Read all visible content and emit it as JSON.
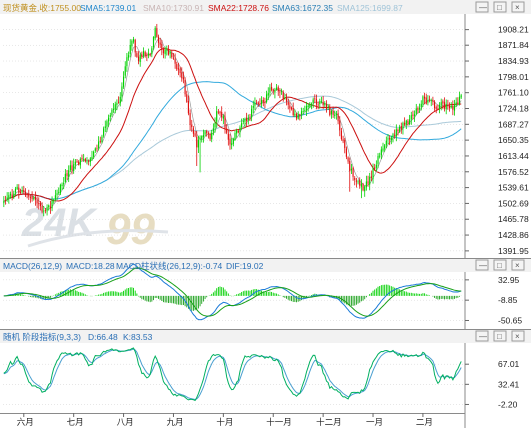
{
  "colors": {
    "bull": "#00d000",
    "bear": "#e01010",
    "sma5": "#999999",
    "sma22": "#cc1010",
    "sma63": "#33aadd",
    "sma125": "#a9c9d9",
    "macd_dif": "#1a7ad8",
    "macd_line": "#18a018",
    "kdj_k": "#00b060",
    "kdj_d": "#4a9fd0",
    "panel_header_bg": "#f2f2f2",
    "grid": "#cfcfcf",
    "watermark": "#d8dde3"
  },
  "price_panel": {
    "title": "现货黄金,收:1755.00",
    "sma5_label": "SMA5:1739.01",
    "sma10_label": "SMA10:1730.91",
    "sma22_label": "SMA22:1728.76",
    "sma63_label": "SMA63:1672.35",
    "sma125_label": "SMA125:1699.87",
    "buttons": [
      "—",
      "□",
      "×"
    ],
    "watermark_a": "24K",
    "watermark_b": "99"
  },
  "macd_panel": {
    "title": "MACD(26,12,9)",
    "macd_label": "MACD:18.28",
    "hist_label": "MACD柱状线(26,12,9):-0.74",
    "dif_label": "DIF:19.02",
    "buttons": [
      "—",
      "□",
      "×"
    ]
  },
  "kdj_panel": {
    "title": "随机 阶段指标(9,3,3)",
    "d_label": "D:66.48",
    "k_label": "K:83.53",
    "buttons": [
      "—",
      "□",
      "×"
    ]
  },
  "chart_data": [
    {
      "type": "candlestick",
      "name": "现货黄金",
      "ylim": [
        1380,
        1940
      ],
      "y_ticks": [
        1908.21,
        1871.84,
        1834.93,
        1798.01,
        1761.1,
        1724.18,
        1687.27,
        1650.35,
        1613.44,
        1576.52,
        1539.61,
        1502.69,
        1465.78,
        1428.86,
        1391.95
      ],
      "x_ticks": [
        "六月",
        "七月",
        "八月",
        "九月",
        "十月",
        "十一月",
        "十二月",
        "一月",
        "二月"
      ],
      "anchors": [
        [
          0,
          1508
        ],
        [
          8,
          1535
        ],
        [
          16,
          1522
        ],
        [
          24,
          1478
        ],
        [
          28,
          1498
        ],
        [
          34,
          1545
        ],
        [
          40,
          1585
        ],
        [
          46,
          1600
        ],
        [
          52,
          1600
        ],
        [
          58,
          1650
        ],
        [
          64,
          1712
        ],
        [
          70,
          1748
        ],
        [
          74,
          1845
        ],
        [
          78,
          1888
        ],
        [
          80,
          1838
        ],
        [
          84,
          1856
        ],
        [
          88,
          1850
        ],
        [
          91,
          1905
        ],
        [
          95,
          1860
        ],
        [
          98,
          1860
        ],
        [
          102,
          1840
        ],
        [
          108,
          1790
        ],
        [
          112,
          1690
        ],
        [
          116,
          1640
        ],
        [
          120,
          1668
        ],
        [
          124,
          1655
        ],
        [
          128,
          1712
        ],
        [
          132,
          1700
        ],
        [
          136,
          1640
        ],
        [
          142,
          1683
        ],
        [
          148,
          1708
        ],
        [
          152,
          1743
        ],
        [
          156,
          1735
        ],
        [
          160,
          1768
        ],
        [
          164,
          1773
        ],
        [
          168,
          1752
        ],
        [
          172,
          1720
        ],
        [
          176,
          1703
        ],
        [
          180,
          1720
        ],
        [
          184,
          1738
        ],
        [
          188,
          1740
        ],
        [
          192,
          1738
        ],
        [
          196,
          1715
        ],
        [
          200,
          1712
        ],
        [
          204,
          1643
        ],
        [
          208,
          1583
        ],
        [
          212,
          1555
        ],
        [
          216,
          1538
        ],
        [
          220,
          1560
        ],
        [
          224,
          1600
        ],
        [
          228,
          1633
        ],
        [
          234,
          1662
        ],
        [
          240,
          1683
        ],
        [
          246,
          1705
        ],
        [
          252,
          1745
        ],
        [
          256,
          1740
        ],
        [
          260,
          1730
        ],
        [
          264,
          1733
        ],
        [
          268,
          1720
        ],
        [
          272,
          1733
        ],
        [
          275,
          1755
        ]
      ]
    },
    {
      "type": "line",
      "name": "MACD(26,12,9)",
      "ylim": [
        -62,
        45
      ],
      "y_ticks": [
        32.95,
        -8.85,
        -50.65
      ]
    },
    {
      "type": "line",
      "name": "随机 阶段指标(9,3,3)",
      "ylim": [
        -10,
        100
      ],
      "y_ticks": [
        67.01,
        32.41,
        -2.2
      ]
    }
  ]
}
